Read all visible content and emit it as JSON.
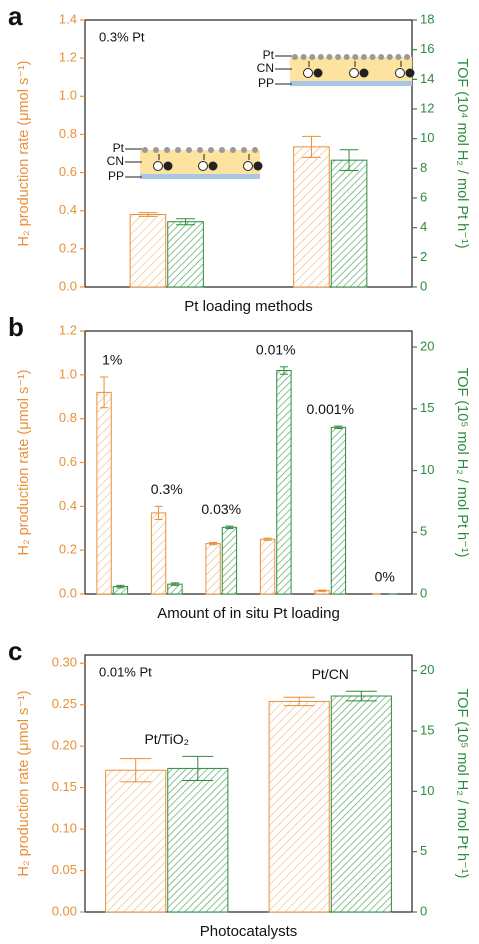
{
  "chart_data": [
    {
      "type": "bar",
      "panel": "a",
      "annotation": "0.3% Pt",
      "ylabel": "H₂ production rate (μmol s⁻¹)",
      "y2label": "TOF (10⁴ mol H₂ / mol Pt h⁻¹)",
      "xlabel": "Pt loading methods",
      "categories": [
        null,
        null
      ],
      "series": [
        {
          "color": "#e8903a",
          "values": [
            0.38,
            0.735
          ],
          "errors": [
            0.01,
            0.055
          ]
        },
        {
          "color": "#2e8b3e",
          "axis": "y2",
          "values": [
            4.4,
            8.55
          ],
          "errors": [
            0.2,
            0.7
          ]
        }
      ],
      "ylim": [
        0,
        1.4
      ],
      "yticks": [
        {
          "value": 0,
          "label": "0.0"
        },
        0.2,
        0.4,
        0.6,
        0.8,
        {
          "value": 1,
          "label": "1.0"
        },
        1.2,
        1.4
      ],
      "y2lim": [
        0,
        18
      ],
      "y2ticks": [
        0,
        2,
        4,
        6,
        8,
        10,
        12,
        14,
        16,
        18
      ],
      "insets": [
        {
          "labels": [
            "Pt",
            "CN",
            "PP"
          ]
        },
        {
          "labels": [
            "Pt",
            "CN",
            "PP"
          ]
        }
      ]
    },
    {
      "type": "bar",
      "panel": "b",
      "ylabel": "H₂ production rate (μmol s⁻¹)",
      "y2label": "TOF (10⁵ mol H₂ / mol Pt h⁻¹)",
      "xlabel": "Amount of in situ Pt loading",
      "categories": [
        "1%",
        "0.3%",
        "0.03%",
        "0.01%",
        "0.001%",
        "0%"
      ],
      "series": [
        {
          "color": "#e8903a",
          "values": [
            0.92,
            0.37,
            0.23,
            0.25,
            0.015,
            0
          ],
          "errors": [
            0.07,
            0.03,
            0.005,
            0.005,
            0.003,
            0
          ]
        },
        {
          "color": "#2e8b3e",
          "axis": "y2",
          "values": [
            0.6,
            0.8,
            5.4,
            18.1,
            13.5,
            0
          ],
          "errors": [
            0.1,
            0.1,
            0.1,
            0.3,
            0.1,
            0
          ]
        }
      ],
      "ylim": [
        0,
        1.2
      ],
      "yticks": [
        {
          "value": 0,
          "label": "0.0"
        },
        0.2,
        0.4,
        0.6,
        0.8,
        {
          "value": 1,
          "label": "1.0"
        },
        1.2
      ],
      "y2lim": [
        0,
        21.3
      ],
      "y2ticks": [
        0,
        5,
        10,
        15,
        20
      ]
    },
    {
      "type": "bar",
      "panel": "c",
      "annotation": "0.01% Pt",
      "ylabel": "H₂ production rate (μmol s⁻¹)",
      "y2label": "TOF (10⁵ mol H₂ / mol Pt h⁻¹)",
      "xlabel": "Photocatalysts",
      "categories": [
        "Pt/TiO₂",
        "Pt/CN"
      ],
      "series": [
        {
          "color": "#e8903a",
          "values": [
            0.171,
            0.254
          ],
          "errors": [
            0.014,
            0.005
          ]
        },
        {
          "color": "#2e8b3e",
          "axis": "y2",
          "values": [
            11.9,
            17.9
          ],
          "errors": [
            1.0,
            0.4
          ]
        }
      ],
      "ylim": [
        0,
        0.31
      ],
      "yticks": [
        {
          "value": 0,
          "label": "0.00"
        },
        0.05,
        {
          "value": 0.1,
          "label": "0.10"
        },
        0.15,
        {
          "value": 0.2,
          "label": "0.20"
        },
        0.25,
        {
          "value": 0.3,
          "label": "0.30"
        }
      ],
      "y2lim": [
        0,
        21.3
      ],
      "y2ticks": [
        0,
        5,
        10,
        15,
        20
      ]
    }
  ]
}
